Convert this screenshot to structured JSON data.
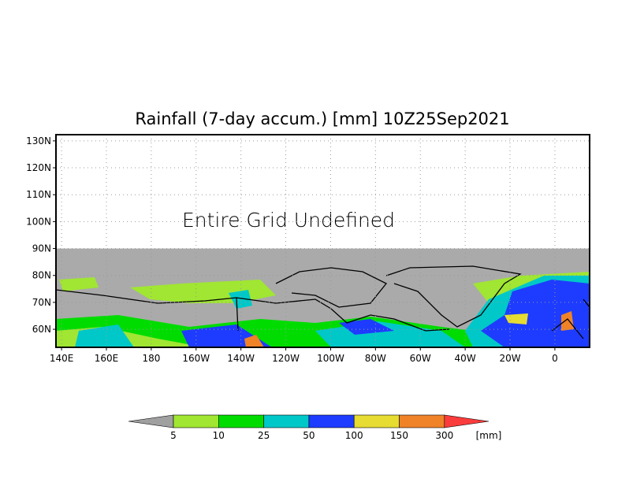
{
  "title": "Rainfall (7-day accum.) [mm] 10Z25Sep2021",
  "message": "Entire Grid Undefined",
  "lat_labels": [
    "130N",
    "120N",
    "110N",
    "100N",
    "90N",
    "80N",
    "70N",
    "60N"
  ],
  "lat_values": [
    130,
    120,
    110,
    100,
    90,
    80,
    70,
    60
  ],
  "lon_labels": [
    "140E",
    "160E",
    "180",
    "160W",
    "140W",
    "120W",
    "100W",
    "80W",
    "60W",
    "40W",
    "20W",
    "0"
  ],
  "lon_values": [
    140,
    160,
    180,
    200,
    220,
    240,
    260,
    280,
    300,
    320,
    340,
    360
  ],
  "map_extent": {
    "lon_min": 137.5,
    "lon_max": 375.5,
    "lat_min": 53.3,
    "lat_max": 132.3,
    "data_lat_max": 90
  },
  "colorbar": {
    "unit": "[mm]",
    "labels": [
      "5",
      "10",
      "25",
      "50",
      "100",
      "150",
      "300"
    ],
    "colors": [
      "#a0a0a0",
      "#a0e632",
      "#00dc00",
      "#00c8c8",
      "#1e3cff",
      "#e6dc32",
      "#f08228",
      "#fa3c3c"
    ]
  },
  "colors": {
    "undefined": "#aaaaaa",
    "coast": "#000000"
  }
}
